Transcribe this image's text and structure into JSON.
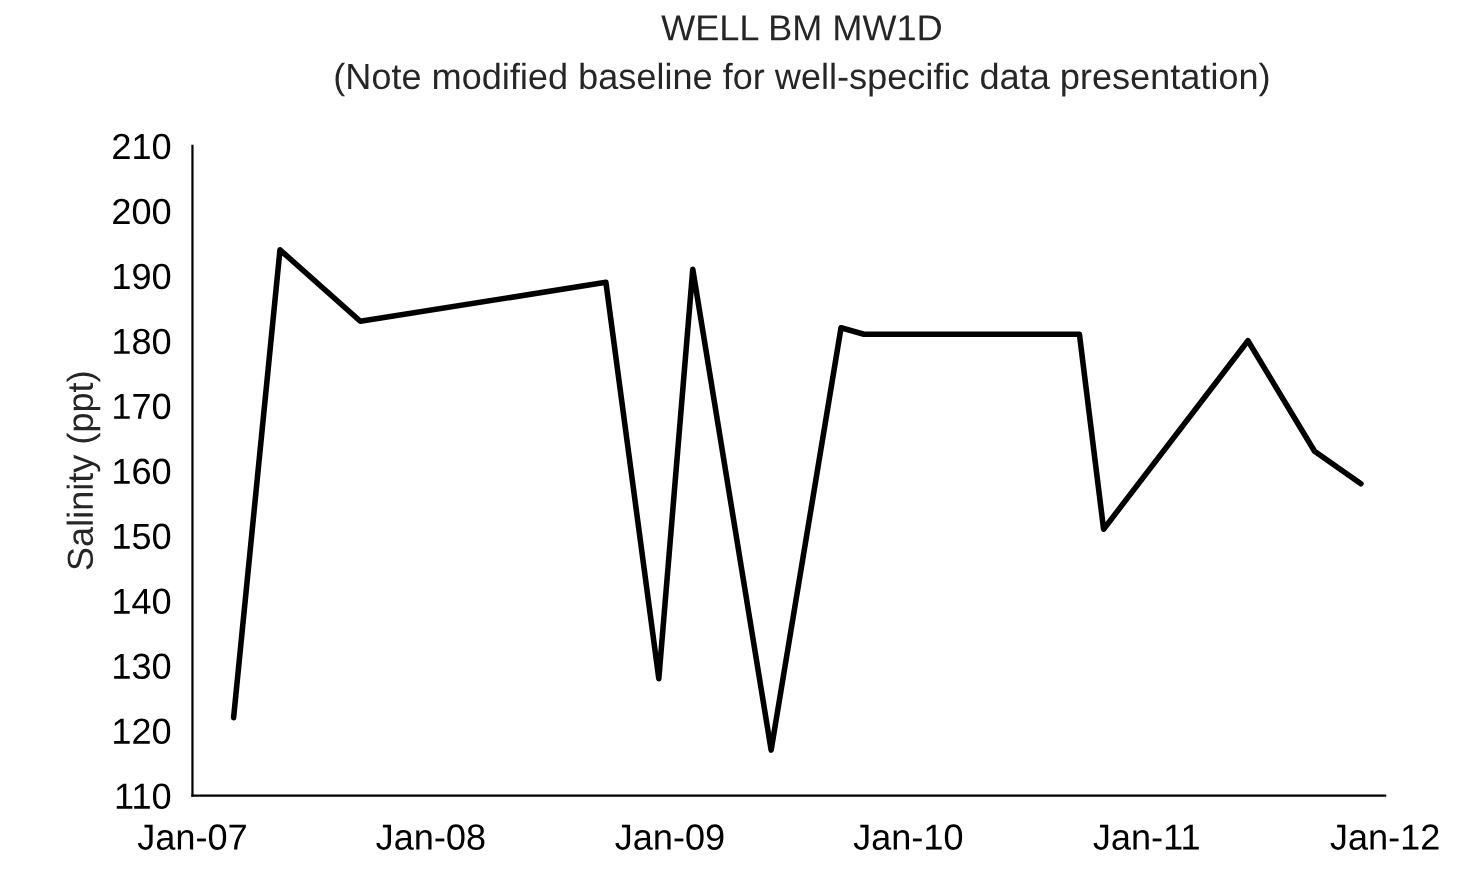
{
  "chart_data": {
    "type": "line",
    "title": "WELL BM MW1D",
    "subtitle": "(Note modified baseline for well-specific data presentation)",
    "ylabel": "Salinity (ppt)",
    "x": [
      "2007-03-05",
      "2007-05-15",
      "2007-09-15",
      "2008-09-25",
      "2008-12-15",
      "2009-02-05",
      "2009-06-05",
      "2009-09-20",
      "2009-10-25",
      "2010-09-20",
      "2010-10-27",
      "2011-06-05",
      "2011-09-15",
      "2011-11-25"
    ],
    "series": [
      {
        "color": "#000000",
        "values": [
          122,
          194,
          183,
          189,
          128,
          191,
          117,
          182,
          181,
          181,
          151,
          180,
          163,
          158
        ]
      }
    ],
    "xlim": [
      "2007-01-01",
      "2012-01-01"
    ],
    "xticks": [
      {
        "value": "2007-01-01",
        "label": "Jan-07"
      },
      {
        "value": "2008-01-01",
        "label": "Jan-08"
      },
      {
        "value": "2009-01-01",
        "label": "Jan-09"
      },
      {
        "value": "2010-01-01",
        "label": "Jan-10"
      },
      {
        "value": "2011-01-01",
        "label": "Jan-11"
      },
      {
        "value": "2012-01-01",
        "label": "Jan-12"
      }
    ],
    "ylim": [
      110,
      210
    ],
    "yticks": [
      110,
      120,
      130,
      140,
      150,
      160,
      170,
      180,
      190,
      200,
      210
    ],
    "grid": false,
    "legend": false,
    "marker": "none",
    "line_style": "solid"
  }
}
